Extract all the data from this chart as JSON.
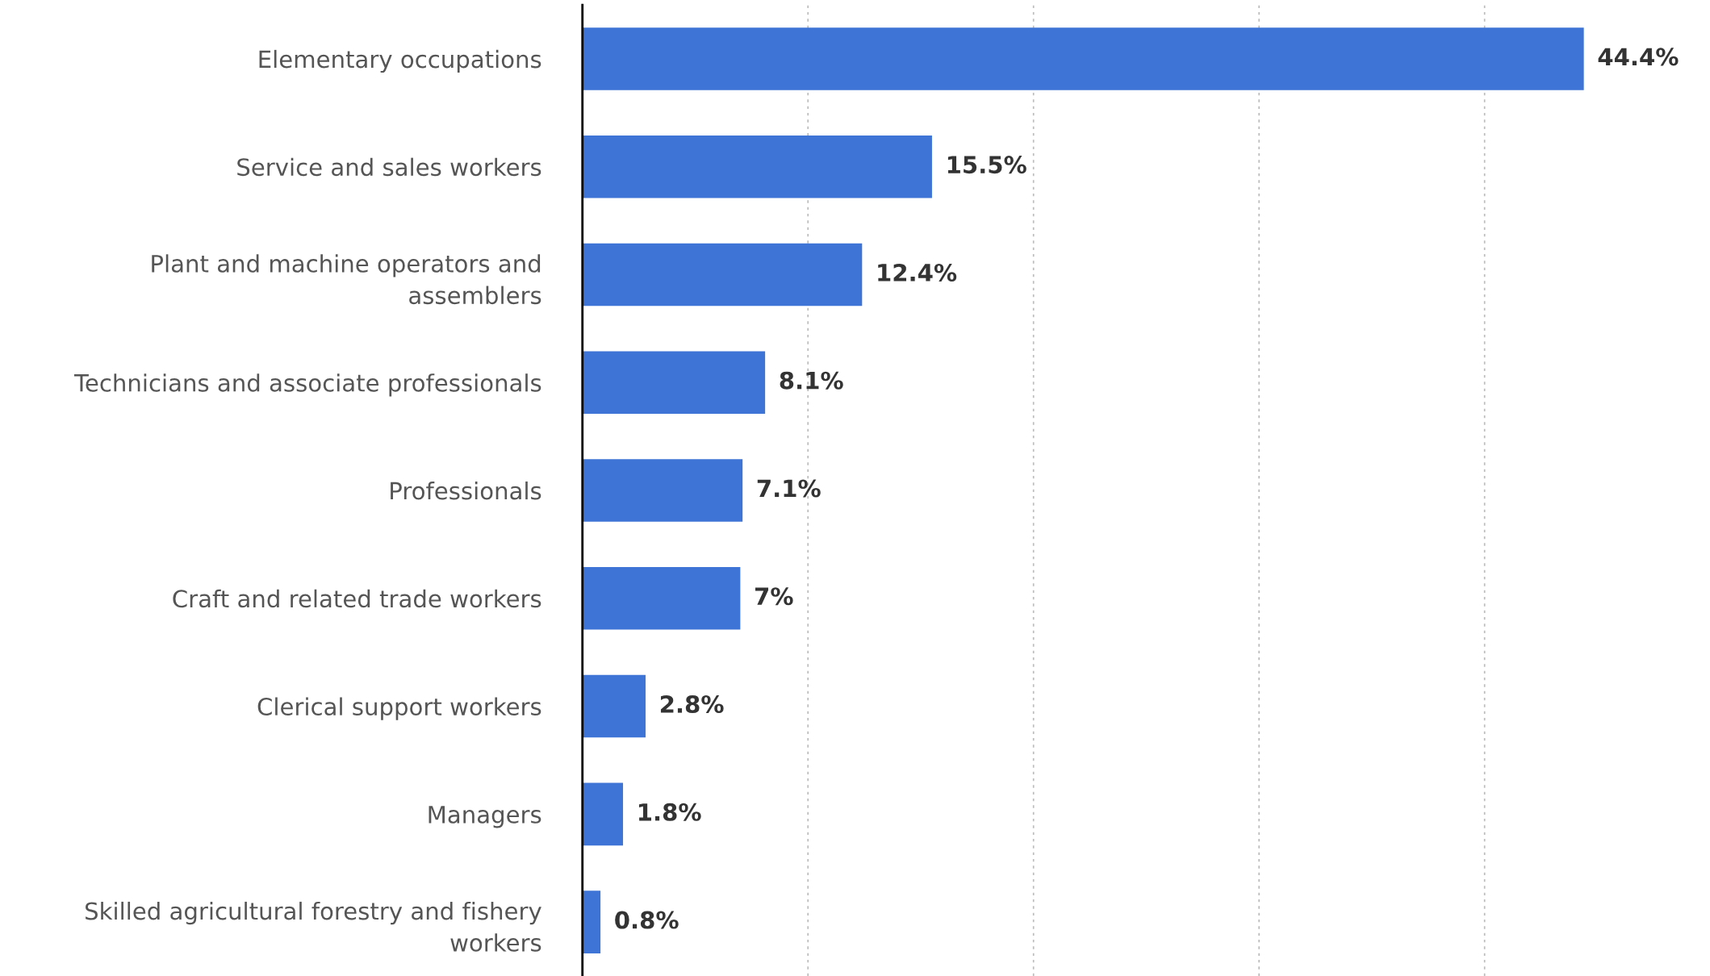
{
  "chart_data": {
    "type": "bar",
    "orientation": "horizontal",
    "categories": [
      "Elementary occupations",
      "Service and sales workers",
      "Plant and machine operators and\nassemblers",
      "Technicians and associate professionals",
      "Professionals",
      "Craft and related trade workers",
      "Clerical support workers",
      "Managers",
      "Skilled agricultural forestry and fishery\nworkers"
    ],
    "values": [
      44.4,
      15.5,
      12.4,
      8.1,
      7.1,
      7,
      2.8,
      1.8,
      0.8
    ],
    "value_labels": [
      "44.4%",
      "15.5%",
      "12.4%",
      "8.1%",
      "7.1%",
      "7%",
      "2.8%",
      "1.8%",
      "0.8%"
    ],
    "color": "#3e74d6",
    "xticks": [
      {
        "value": 10,
        "label": null
      },
      {
        "value": 20,
        "label": null
      },
      {
        "value": 30,
        "label": null
      },
      {
        "value": 40,
        "label": null
      }
    ],
    "grid": "x",
    "tick_labels": "y"
  }
}
